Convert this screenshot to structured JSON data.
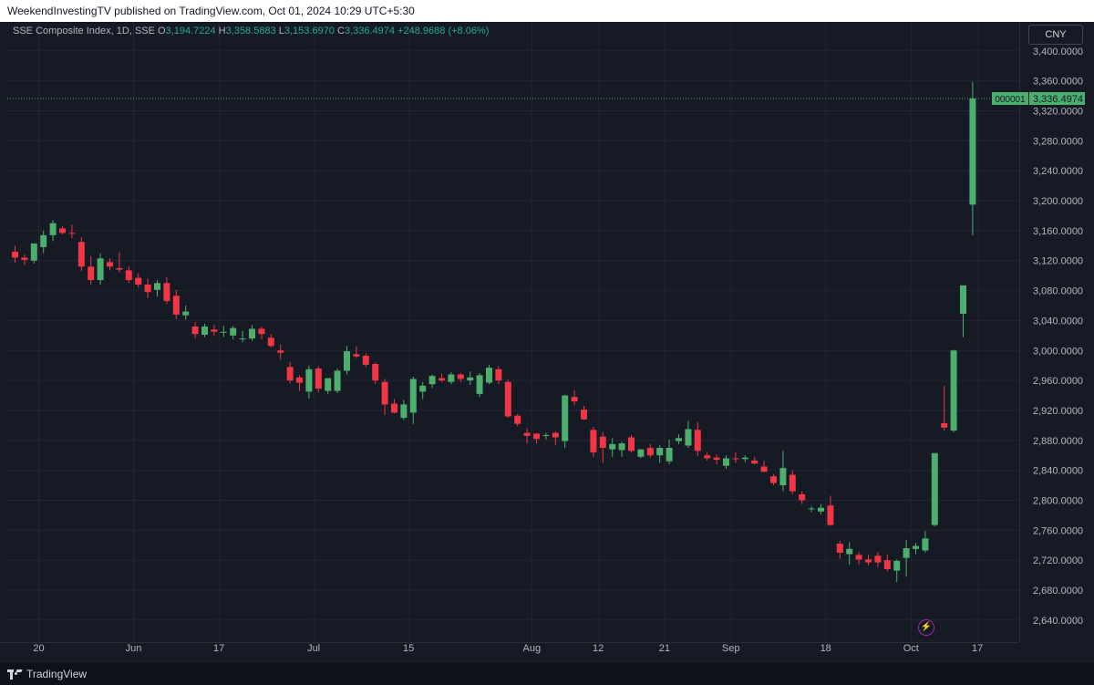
{
  "header": {
    "publisher_line": "WeekendInvestingTV published on TradingView.com, Oct 01, 2024 10:29 UTC+5:30"
  },
  "legend": {
    "symbol": "SSE Composite Index, 1D, SSE",
    "open_label": "O",
    "open_value": "3,194.7224",
    "high_label": "H",
    "high_value": "3,358.5883",
    "low_label": "L",
    "low_value": "3,153.6970",
    "close_label": "C",
    "close_value": "3,336.4974",
    "change": "+248.9688 (+8.06%)"
  },
  "currency_button": "CNY",
  "footer": {
    "brand": "TradingView"
  },
  "colors": {
    "up": "#26a69a",
    "up_body": "#4caf6e",
    "down": "#f23645",
    "background": "#161a25",
    "grid": "#232632",
    "last_price": "#4caf6e"
  },
  "chart_data": {
    "type": "candlestick",
    "y_range": [
      2620,
      3420
    ],
    "y_ticks": [
      2640,
      2680,
      2720,
      2760,
      2800,
      2840,
      2880,
      2920,
      2960,
      3000,
      3040,
      3080,
      3120,
      3160,
      3200,
      3240,
      3280,
      3320,
      3360,
      3400
    ],
    "y_tick_labels": [
      "2,640.0000",
      "2,680.0000",
      "2,720.0000",
      "2,760.0000",
      "2,800.0000",
      "2,840.0000",
      "2,880.0000",
      "2,920.0000",
      "2,960.0000",
      "3,000.0000",
      "3,040.0000",
      "3,080.0000",
      "3,120.0000",
      "3,160.0000",
      "3,200.0000",
      "3,240.0000",
      "3,280.0000",
      "3,320.0000",
      "3,360.0000",
      "3,400.0000"
    ],
    "x_labels": [
      {
        "label": "20",
        "index": 2.5
      },
      {
        "label": "Jun",
        "index": 12.5
      },
      {
        "label": "17",
        "index": 21.5
      },
      {
        "label": "Jul",
        "index": 31.5
      },
      {
        "label": "15",
        "index": 41.5
      },
      {
        "label": "Aug",
        "index": 54.5
      },
      {
        "label": "12",
        "index": 61.5
      },
      {
        "label": "21",
        "index": 68.5
      },
      {
        "label": "Sep",
        "index": 75.5
      },
      {
        "label": "18",
        "index": 85.5
      },
      {
        "label": "Oct",
        "index": 94.5
      },
      {
        "label": "17",
        "index": 101.5
      }
    ],
    "last_price": {
      "symbol_tag": "000001",
      "value": 3336.4974,
      "label": "3,336.4974"
    },
    "candles": [
      {
        "o": 3132,
        "h": 3140,
        "l": 3117,
        "c": 3124
      },
      {
        "o": 3124,
        "h": 3128,
        "l": 3114,
        "c": 3121
      },
      {
        "o": 3120,
        "h": 3142,
        "l": 3116,
        "c": 3143
      },
      {
        "o": 3138,
        "h": 3160,
        "l": 3130,
        "c": 3154
      },
      {
        "o": 3154,
        "h": 3174,
        "l": 3146,
        "c": 3170
      },
      {
        "o": 3163,
        "h": 3166,
        "l": 3155,
        "c": 3157
      },
      {
        "o": 3157,
        "h": 3168,
        "l": 3150,
        "c": 3156
      },
      {
        "o": 3145,
        "h": 3151,
        "l": 3106,
        "c": 3112
      },
      {
        "o": 3112,
        "h": 3126,
        "l": 3088,
        "c": 3094
      },
      {
        "o": 3094,
        "h": 3130,
        "l": 3088,
        "c": 3123
      },
      {
        "o": 3118,
        "h": 3123,
        "l": 3107,
        "c": 3112
      },
      {
        "o": 3110,
        "h": 3131,
        "l": 3104,
        "c": 3108
      },
      {
        "o": 3107,
        "h": 3112,
        "l": 3090,
        "c": 3094
      },
      {
        "o": 3097,
        "h": 3103,
        "l": 3084,
        "c": 3088
      },
      {
        "o": 3088,
        "h": 3096,
        "l": 3070,
        "c": 3078
      },
      {
        "o": 3081,
        "h": 3094,
        "l": 3072,
        "c": 3090
      },
      {
        "o": 3090,
        "h": 3098,
        "l": 3062,
        "c": 3066
      },
      {
        "o": 3073,
        "h": 3081,
        "l": 3042,
        "c": 3048
      },
      {
        "o": 3047,
        "h": 3060,
        "l": 3041,
        "c": 3052
      },
      {
        "o": 3032,
        "h": 3038,
        "l": 3016,
        "c": 3022
      },
      {
        "o": 3021,
        "h": 3036,
        "l": 3018,
        "c": 3032
      },
      {
        "o": 3028,
        "h": 3034,
        "l": 3020,
        "c": 3025
      },
      {
        "o": 3025,
        "h": 3033,
        "l": 3018,
        "c": 3025
      },
      {
        "o": 3020,
        "h": 3033,
        "l": 3015,
        "c": 3030
      },
      {
        "o": 3015,
        "h": 3026,
        "l": 3011,
        "c": 3016
      },
      {
        "o": 3016,
        "h": 3034,
        "l": 3013,
        "c": 3029
      },
      {
        "o": 3029,
        "h": 3032,
        "l": 3015,
        "c": 3022
      },
      {
        "o": 3017,
        "h": 3022,
        "l": 3004,
        "c": 3006
      },
      {
        "o": 3000,
        "h": 3008,
        "l": 2988,
        "c": 2997
      },
      {
        "o": 2978,
        "h": 2985,
        "l": 2956,
        "c": 2960
      },
      {
        "o": 2964,
        "h": 2967,
        "l": 2946,
        "c": 2957
      },
      {
        "o": 2945,
        "h": 2980,
        "l": 2936,
        "c": 2975
      },
      {
        "o": 2976,
        "h": 2979,
        "l": 2944,
        "c": 2949
      },
      {
        "o": 2946,
        "h": 2963,
        "l": 2942,
        "c": 2963
      },
      {
        "o": 2946,
        "h": 2976,
        "l": 2943,
        "c": 2973
      },
      {
        "o": 2973,
        "h": 3006,
        "l": 2968,
        "c": 2999
      },
      {
        "o": 2995,
        "h": 3006,
        "l": 2990,
        "c": 2992
      },
      {
        "o": 2993,
        "h": 2996,
        "l": 2978,
        "c": 2981
      },
      {
        "o": 2982,
        "h": 2984,
        "l": 2955,
        "c": 2960
      },
      {
        "o": 2958,
        "h": 2962,
        "l": 2914,
        "c": 2928
      },
      {
        "o": 2929,
        "h": 2935,
        "l": 2916,
        "c": 2917
      },
      {
        "o": 2910,
        "h": 2934,
        "l": 2907,
        "c": 2928
      },
      {
        "o": 2917,
        "h": 2965,
        "l": 2902,
        "c": 2962
      },
      {
        "o": 2945,
        "h": 2958,
        "l": 2935,
        "c": 2953
      },
      {
        "o": 2955,
        "h": 2968,
        "l": 2950,
        "c": 2966
      },
      {
        "o": 2963,
        "h": 2969,
        "l": 2958,
        "c": 2960
      },
      {
        "o": 2958,
        "h": 2971,
        "l": 2955,
        "c": 2968
      },
      {
        "o": 2968,
        "h": 2970,
        "l": 2958,
        "c": 2962
      },
      {
        "o": 2960,
        "h": 2972,
        "l": 2954,
        "c": 2964
      },
      {
        "o": 2942,
        "h": 2970,
        "l": 2938,
        "c": 2967
      },
      {
        "o": 2957,
        "h": 2981,
        "l": 2955,
        "c": 2977
      },
      {
        "o": 2975,
        "h": 2979,
        "l": 2955,
        "c": 2960
      },
      {
        "o": 2958,
        "h": 2961,
        "l": 2910,
        "c": 2912
      },
      {
        "o": 2913,
        "h": 2915,
        "l": 2899,
        "c": 2902
      },
      {
        "o": 2890,
        "h": 2896,
        "l": 2876,
        "c": 2886
      },
      {
        "o": 2889,
        "h": 2890,
        "l": 2876,
        "c": 2882
      },
      {
        "o": 2886,
        "h": 2890,
        "l": 2881,
        "c": 2887
      },
      {
        "o": 2890,
        "h": 2892,
        "l": 2874,
        "c": 2884
      },
      {
        "o": 2879,
        "h": 2941,
        "l": 2870,
        "c": 2940
      },
      {
        "o": 2938,
        "h": 2947,
        "l": 2927,
        "c": 2932
      },
      {
        "o": 2921,
        "h": 2926,
        "l": 2907,
        "c": 2908
      },
      {
        "o": 2894,
        "h": 2898,
        "l": 2858,
        "c": 2864
      },
      {
        "o": 2885,
        "h": 2891,
        "l": 2850,
        "c": 2870
      },
      {
        "o": 2868,
        "h": 2883,
        "l": 2858,
        "c": 2875
      },
      {
        "o": 2867,
        "h": 2878,
        "l": 2858,
        "c": 2876
      },
      {
        "o": 2884,
        "h": 2887,
        "l": 2864,
        "c": 2866
      },
      {
        "o": 2858,
        "h": 2867,
        "l": 2856,
        "c": 2868
      },
      {
        "o": 2870,
        "h": 2875,
        "l": 2857,
        "c": 2860
      },
      {
        "o": 2860,
        "h": 2874,
        "l": 2850,
        "c": 2870
      },
      {
        "o": 2852,
        "h": 2881,
        "l": 2848,
        "c": 2870
      },
      {
        "o": 2879,
        "h": 2888,
        "l": 2875,
        "c": 2883
      },
      {
        "o": 2873,
        "h": 2906,
        "l": 2870,
        "c": 2895
      },
      {
        "o": 2894,
        "h": 2904,
        "l": 2859,
        "c": 2866
      },
      {
        "o": 2860,
        "h": 2864,
        "l": 2853,
        "c": 2856
      },
      {
        "o": 2857,
        "h": 2861,
        "l": 2848,
        "c": 2854
      },
      {
        "o": 2846,
        "h": 2860,
        "l": 2842,
        "c": 2856
      },
      {
        "o": 2856,
        "h": 2864,
        "l": 2850,
        "c": 2855
      },
      {
        "o": 2855,
        "h": 2860,
        "l": 2851,
        "c": 2857
      },
      {
        "o": 2853,
        "h": 2858,
        "l": 2848,
        "c": 2849
      },
      {
        "o": 2845,
        "h": 2853,
        "l": 2838,
        "c": 2838
      },
      {
        "o": 2832,
        "h": 2835,
        "l": 2820,
        "c": 2823
      },
      {
        "o": 2820,
        "h": 2866,
        "l": 2812,
        "c": 2843
      },
      {
        "o": 2834,
        "h": 2840,
        "l": 2808,
        "c": 2812
      },
      {
        "o": 2808,
        "h": 2812,
        "l": 2795,
        "c": 2800
      },
      {
        "o": 2789,
        "h": 2792,
        "l": 2784,
        "c": 2789
      },
      {
        "o": 2785,
        "h": 2795,
        "l": 2781,
        "c": 2790
      },
      {
        "o": 2793,
        "h": 2806,
        "l": 2766,
        "c": 2767
      },
      {
        "o": 2742,
        "h": 2746,
        "l": 2722,
        "c": 2730
      },
      {
        "o": 2728,
        "h": 2744,
        "l": 2714,
        "c": 2735
      },
      {
        "o": 2727,
        "h": 2731,
        "l": 2714,
        "c": 2721
      },
      {
        "o": 2721,
        "h": 2727,
        "l": 2713,
        "c": 2717
      },
      {
        "o": 2726,
        "h": 2731,
        "l": 2711,
        "c": 2717
      },
      {
        "o": 2720,
        "h": 2728,
        "l": 2705,
        "c": 2708
      },
      {
        "o": 2706,
        "h": 2721,
        "l": 2691,
        "c": 2719
      },
      {
        "o": 2723,
        "h": 2747,
        "l": 2698,
        "c": 2736
      },
      {
        "o": 2735,
        "h": 2743,
        "l": 2728,
        "c": 2739
      },
      {
        "o": 2733,
        "h": 2759,
        "l": 2730,
        "c": 2749
      },
      {
        "o": 2767,
        "h": 2863,
        "l": 2765,
        "c": 2863
      },
      {
        "o": 2903,
        "h": 2953,
        "l": 2893,
        "c": 2897
      },
      {
        "o": 2893,
        "h": 3001,
        "l": 2891,
        "c": 3000
      },
      {
        "o": 3049,
        "h": 3087,
        "l": 3018,
        "c": 3087
      },
      {
        "o": 3194.7224,
        "h": 3358.5883,
        "l": 3153.697,
        "c": 3336.4974
      }
    ]
  }
}
